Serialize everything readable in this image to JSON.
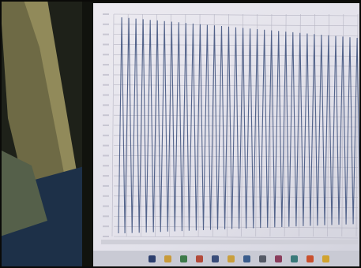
{
  "scene": {
    "description_hidden": "",
    "colors": {
      "screen": "#e4e3ea",
      "grid": "#b7b6c4",
      "trace": "#3a4d7a",
      "taskbar": "#c9cad4",
      "bezel": "#11130e"
    }
  },
  "taskbar_icons": [
    {
      "name": "windows-icon",
      "color": "#2d3f6e"
    },
    {
      "name": "explorer-icon",
      "color": "#c89a3a"
    },
    {
      "name": "browser-icon",
      "color": "#3d7a4a"
    },
    {
      "name": "app-icon",
      "color": "#b34a3a"
    },
    {
      "name": "chart-app-icon",
      "color": "#3a4d7a"
    },
    {
      "name": "folder-icon",
      "color": "#c99f3d"
    },
    {
      "name": "mail-icon",
      "color": "#3a5c8c"
    },
    {
      "name": "settings-icon",
      "color": "#555a66"
    },
    {
      "name": "media-icon",
      "color": "#8a3d5c"
    },
    {
      "name": "store-icon",
      "color": "#3a7a7a"
    },
    {
      "name": "chrome-icon",
      "color": "#c9502e"
    },
    {
      "name": "note-icon",
      "color": "#d1a32f"
    }
  ]
}
